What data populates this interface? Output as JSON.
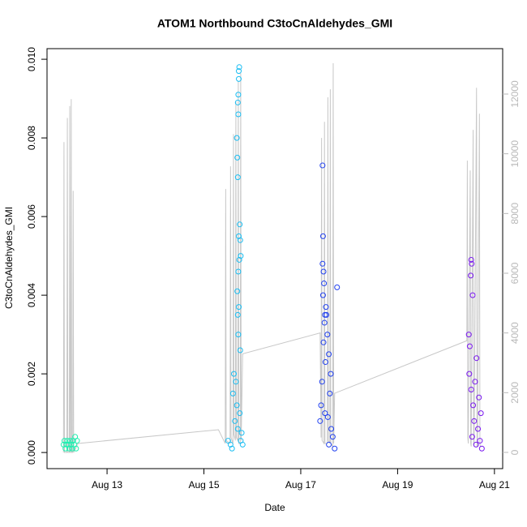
{
  "chart_data": {
    "type": "scatter",
    "title": "ATOM1 Northbound C3toCnAldehydes_GMI",
    "x_label": "Date",
    "y_label": "C3toCnAldehydes_GMI",
    "xlim": [
      11.76,
      21.17
    ],
    "ylim": [
      -0.00041,
      0.01027
    ],
    "y2lim": [
      -543,
      13520
    ],
    "xticks": [
      {
        "value": 13,
        "label": "Aug 13"
      },
      {
        "value": 15,
        "label": "Aug 15"
      },
      {
        "value": 17,
        "label": "Aug 17"
      },
      {
        "value": 19,
        "label": "Aug 19"
      },
      {
        "value": 21,
        "label": "Aug 21"
      }
    ],
    "yticks": [
      {
        "value": 0,
        "label": "0.000"
      },
      {
        "value": 0.002,
        "label": "0.002"
      },
      {
        "value": 0.004,
        "label": "0.004"
      },
      {
        "value": 0.006,
        "label": "0.006"
      },
      {
        "value": 0.008,
        "label": "0.008"
      },
      {
        "value": 0.01,
        "label": "0.010"
      }
    ],
    "y2ticks": [
      0,
      2000,
      4000,
      6000,
      8000,
      10000,
      12000
    ],
    "series": [
      {
        "type": "line",
        "axis": "y2",
        "color": "#c8c8c8",
        "x": [
          12.1,
          12.11,
          12.12,
          12.17,
          12.18,
          12.19,
          12.22,
          12.23,
          12.24,
          12.25,
          12.26,
          12.27,
          12.29,
          12.3,
          12.31,
          12.4,
          15.3,
          15.44,
          15.45,
          15.46,
          15.54,
          15.55,
          15.56,
          15.6,
          15.61,
          15.62,
          15.65,
          15.66,
          15.67,
          15.7,
          15.71,
          15.72,
          15.75,
          15.76,
          15.77,
          15.8,
          17.4,
          17.42,
          17.43,
          17.44,
          17.48,
          17.49,
          17.5,
          17.55,
          17.56,
          17.57,
          17.6,
          17.61,
          17.62,
          17.66,
          17.67,
          17.68,
          17.7,
          20.43,
          20.44,
          20.45,
          20.46,
          20.5,
          20.51,
          20.52,
          20.56,
          20.57,
          20.58,
          20.63,
          20.64,
          20.65,
          20.69,
          20.7,
          20.71,
          20.75
        ],
        "values": [
          0,
          10390,
          0,
          0,
          11200,
          0,
          0,
          11600,
          0,
          0,
          11830,
          0,
          0,
          8760,
          0,
          300,
          760,
          300,
          8820,
          400,
          300,
          9580,
          500,
          300,
          10660,
          600,
          400,
          11750,
          500,
          400,
          12430,
          300,
          300,
          12700,
          400,
          3300,
          4000,
          500,
          10530,
          400,
          300,
          11070,
          300,
          300,
          11890,
          400,
          300,
          12160,
          300,
          200,
          13030,
          300,
          1980,
          3740,
          9770,
          500,
          300,
          9440,
          300,
          200,
          10800,
          300,
          200,
          12210,
          200,
          200,
          11340,
          300,
          200,
          200
        ]
      },
      {
        "color": "#1ef0b0",
        "x": [
          12.1,
          12.12,
          12.14,
          12.16,
          12.18,
          12.2,
          12.22,
          12.24,
          12.26,
          12.28,
          12.3,
          12.32,
          12.34,
          12.36,
          12.38
        ],
        "values": [
          0.0002,
          0.0003,
          0.0001,
          0.0002,
          0.0003,
          0.0002,
          0.0001,
          0.0003,
          0.0002,
          0.0001,
          0.0003,
          0.0002,
          0.0004,
          0.0001,
          0.0003
        ]
      },
      {
        "color": "#19bdf2",
        "x": [
          15.73,
          15.72,
          15.72,
          15.71,
          15.7,
          15.71,
          15.68,
          15.69,
          15.7,
          15.74,
          15.72,
          15.75,
          15.76,
          15.73,
          15.71,
          15.69,
          15.72,
          15.7,
          15.71,
          15.75,
          15.62,
          15.66,
          15.6,
          15.68,
          15.74,
          15.64,
          15.7,
          15.78,
          15.5,
          15.55,
          15.58,
          15.76,
          15.8
        ],
        "values": [
          0.0098,
          0.0097,
          0.0095,
          0.0091,
          0.0089,
          0.0086,
          0.008,
          0.0075,
          0.007,
          0.0058,
          0.0055,
          0.0054,
          0.005,
          0.0049,
          0.0046,
          0.0041,
          0.0037,
          0.0035,
          0.003,
          0.0026,
          0.002,
          0.0018,
          0.0015,
          0.0012,
          0.001,
          0.0008,
          0.0006,
          0.0005,
          0.0003,
          0.0002,
          0.0001,
          0.0003,
          0.0002
        ]
      },
      {
        "color": "#2040f0",
        "x": [
          17.45,
          17.46,
          17.45,
          17.47,
          17.48,
          17.46,
          17.52,
          17.5,
          17.53,
          17.49,
          17.55,
          17.47,
          17.58,
          17.51,
          17.62,
          17.44,
          17.6,
          17.42,
          17.5,
          17.56,
          17.4,
          17.63,
          17.66,
          17.58,
          17.7,
          17.75
        ],
        "values": [
          0.0073,
          0.0055,
          0.0048,
          0.0046,
          0.0043,
          0.004,
          0.0037,
          0.0035,
          0.0035,
          0.0033,
          0.003,
          0.0028,
          0.0025,
          0.0023,
          0.002,
          0.0018,
          0.0015,
          0.0012,
          0.001,
          0.0009,
          0.0008,
          0.0006,
          0.0004,
          0.0002,
          0.0001,
          0.0042
        ]
      },
      {
        "color": "#7a18f0",
        "x": [
          20.52,
          20.53,
          20.51,
          20.55,
          20.47,
          20.49,
          20.63,
          20.48,
          20.6,
          20.52,
          20.68,
          20.56,
          20.72,
          20.58,
          20.66,
          20.54,
          20.7,
          20.62,
          20.74
        ],
        "values": [
          0.0049,
          0.0048,
          0.0045,
          0.004,
          0.003,
          0.0027,
          0.0024,
          0.002,
          0.0018,
          0.0016,
          0.0014,
          0.0012,
          0.001,
          0.0008,
          0.0006,
          0.0004,
          0.0003,
          0.0002,
          0.0001
        ]
      }
    ]
  }
}
